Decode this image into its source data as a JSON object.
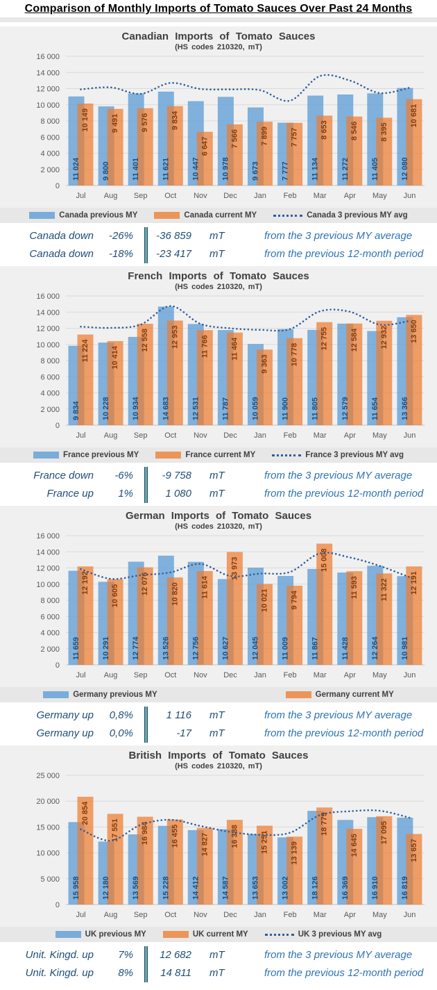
{
  "page_title": "Comparison of Monthly Imports of Tomato Sauces Over Past 24 Months",
  "months": [
    "Jul",
    "Aug",
    "Sep",
    "Oct",
    "Nov",
    "Dec",
    "Jan",
    "Feb",
    "Mar",
    "Apr",
    "May",
    "Jun"
  ],
  "colors": {
    "previous_bar": "#5B9BD5",
    "current_bar": "#ED7D31",
    "avg_line": "#2F5D9E",
    "previous_label": "#1F4E79",
    "current_label": "#843C0C",
    "stats_text": "#1F4E79",
    "stats_description": "#2E74B5"
  },
  "charts": [
    {
      "title": "Canadian  Imports  of  Tomato  Sauces",
      "subtitle": "(HS codes 210320,  mT)",
      "chart_data": {
        "type": "bar+line",
        "categories": [
          "Jul",
          "Aug",
          "Sep",
          "Oct",
          "Nov",
          "Dec",
          "Jan",
          "Feb",
          "Mar",
          "Apr",
          "May",
          "Jun"
        ],
        "ylim": [
          0,
          16000
        ],
        "ystep": 2000,
        "grid": true,
        "legend_position": "bottom",
        "legend_series": [
          0,
          1,
          2
        ],
        "series": [
          {
            "name": "Canada previous MY",
            "type": "bar",
            "color": "#5B9BD5",
            "opacity": 0.75,
            "label_color": "#1F4E79",
            "values": [
              11024,
              9800,
              11401,
              11621,
              10447,
              10978,
              9673,
              7777,
              11134,
              11272,
              11405,
              12080
            ]
          },
          {
            "name": "Canada current MY",
            "type": "bar",
            "color": "#ED7D31",
            "opacity": 0.72,
            "label_color": "#843C0C",
            "values": [
              10149,
              9491,
              9576,
              9834,
              6647,
              7566,
              7899,
              7757,
              8653,
              8546,
              8395,
              10681
            ]
          },
          {
            "name": "Canada 3 previous MY avg",
            "type": "line",
            "color": "#2F5D9E",
            "values": [
              11900,
              12150,
              11350,
              12700,
              11950,
              11900,
              11800,
              10500,
              13550,
              13000,
              11450,
              12100
            ]
          }
        ]
      },
      "stats": [
        {
          "label": "Canada down",
          "pct": "-26%",
          "value": "-36 859",
          "unit": "mT",
          "desc": "from the 3 previous MY average"
        },
        {
          "label": "Canada down",
          "pct": "-18%",
          "value": "-23 417",
          "unit": "mT",
          "desc": "from the previous 12-month period"
        }
      ]
    },
    {
      "title": "French  Imports  of  Tomato  Sauces",
      "subtitle": "(HS codes 210320,  mT)",
      "chart_data": {
        "type": "bar+line",
        "categories": [
          "Jul",
          "Aug",
          "Sep",
          "Oct",
          "Nov",
          "Dec",
          "Jan",
          "Feb",
          "Mar",
          "Apr",
          "May",
          "Jun"
        ],
        "ylim": [
          0,
          16000
        ],
        "ystep": 2000,
        "grid": true,
        "legend_position": "bottom",
        "legend_series": [
          0,
          1,
          2
        ],
        "series": [
          {
            "name": "France previous MY",
            "type": "bar",
            "color": "#5B9BD5",
            "opacity": 0.75,
            "label_color": "#1F4E79",
            "values": [
              9834,
              10228,
              10934,
              14683,
              12531,
              11787,
              10059,
              11900,
              11805,
              12579,
              11654,
              13366
            ]
          },
          {
            "name": "France current MY",
            "type": "bar",
            "color": "#ED7D31",
            "opacity": 0.72,
            "label_color": "#843C0C",
            "values": [
              11224,
              10414,
              12558,
              12953,
              11766,
              11464,
              9363,
              10778,
              12755,
              12584,
              12932,
              13650
            ]
          },
          {
            "name": "France 3 previous MY avg",
            "type": "line",
            "color": "#2F5D9E",
            "values": [
              12200,
              12050,
              12450,
              14750,
              12550,
              12000,
              11800,
              11900,
              14100,
              14050,
              12450,
              12900
            ]
          }
        ]
      },
      "stats": [
        {
          "label": "France down",
          "pct": "-6%",
          "value": "-9 758",
          "unit": "mT",
          "desc": "from the 3 previous MY average"
        },
        {
          "label": "France up",
          "pct": "1%",
          "value": "1 080",
          "unit": "mT",
          "desc": "from the previous 12-month period"
        }
      ]
    },
    {
      "title": "German  Imports  of  Tomato  Sauces",
      "subtitle": "(HS codes 210320,  mT)",
      "chart_data": {
        "type": "bar+line",
        "categories": [
          "Jul",
          "Aug",
          "Sep",
          "Oct",
          "Nov",
          "Dec",
          "Jan",
          "Feb",
          "Mar",
          "Apr",
          "May",
          "Jun"
        ],
        "ylim": [
          0,
          16000
        ],
        "ystep": 2000,
        "grid": true,
        "legend_position": "bottom",
        "legend_series": [
          0,
          1
        ],
        "series": [
          {
            "name": "Germany previous MY",
            "type": "bar",
            "color": "#5B9BD5",
            "opacity": 0.75,
            "label_color": "#1F4E79",
            "values": [
              11659,
              10291,
              12774,
              13526,
              12756,
              10627,
              12045,
              11009,
              11867,
              11428,
              12264,
              10981
            ]
          },
          {
            "name": "Germany current MY",
            "type": "bar",
            "color": "#ED7D31",
            "opacity": 0.72,
            "label_color": "#843C0C",
            "values": [
              12192,
              10605,
              12076,
              10820,
              11614,
              13973,
              10021,
              9794,
              15008,
              11593,
              11322,
              12191
            ]
          },
          {
            "name": "Germany 3 previous MY avg",
            "type": "line",
            "color": "#2F5D9E",
            "values": [
              11850,
              10650,
              11100,
              11450,
              12500,
              11000,
              11300,
              11500,
              13800,
              13300,
              12250,
              10850
            ]
          }
        ]
      },
      "stats": [
        {
          "label": "Germany up",
          "pct": "0,8%",
          "value": "1 116",
          "unit": "mT",
          "desc": "from the 3 previous MY average"
        },
        {
          "label": "Germany up",
          "pct": "0,0%",
          "value": "-17",
          "unit": "mT",
          "desc": "from the previous 12-month period"
        }
      ]
    },
    {
      "title": "British  Imports  of  Tomato  Sauces",
      "subtitle": "(HS codes 210320,  mT)",
      "chart_data": {
        "type": "bar+line",
        "categories": [
          "Jul",
          "Aug",
          "Sep",
          "Oct",
          "Nov",
          "Dec",
          "Jan",
          "Feb",
          "Mar",
          "Apr",
          "May",
          "Jun"
        ],
        "ylim": [
          0,
          25000
        ],
        "ystep": 5000,
        "grid": true,
        "legend_position": "bottom",
        "legend_series": [
          0,
          1,
          2
        ],
        "series": [
          {
            "name": "UK previous MY",
            "type": "bar",
            "color": "#5B9BD5",
            "opacity": 0.75,
            "label_color": "#1F4E79",
            "values": [
              15958,
              12180,
              13569,
              15228,
              14412,
              14587,
              13653,
              13002,
              18126,
              16369,
              16910,
              16819
            ]
          },
          {
            "name": "UK current MY",
            "type": "bar",
            "color": "#ED7D31",
            "opacity": 0.72,
            "label_color": "#843C0C",
            "values": [
              20854,
              17551,
              16984,
              16455,
              14827,
              16388,
              15251,
              13139,
              18779,
              14645,
              17095,
              13657
            ]
          },
          {
            "name": "UK 3 previous MY avg",
            "type": "line",
            "color": "#2F5D9E",
            "values": [
              14550,
              12350,
              15400,
              16400,
              15200,
              14050,
              13500,
              13900,
              17300,
              18050,
              18150,
              16800
            ]
          }
        ]
      },
      "stats": [
        {
          "label": "Unit. Kingd. up",
          "pct": "7%",
          "value": "12 682",
          "unit": "mT",
          "desc": "from the 3 previous MY average"
        },
        {
          "label": "Unit. Kingd. up",
          "pct": "8%",
          "value": "14 811",
          "unit": "mT",
          "desc": "from the previous 12-month period"
        }
      ]
    }
  ]
}
